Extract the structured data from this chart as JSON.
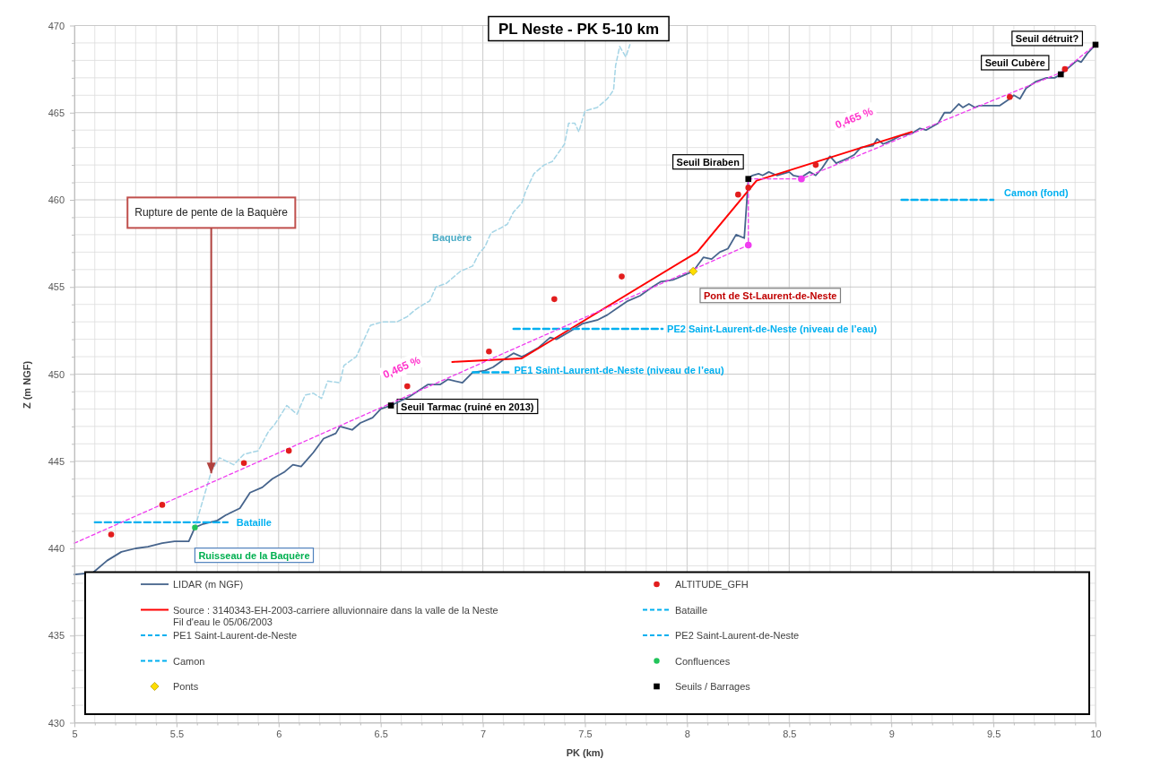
{
  "chart_data": {
    "type": "line",
    "title": "PL Neste - PK 5-10 km",
    "xlabel": "PK (km)",
    "ylabel": "Z (m NGF)",
    "xlim": [
      5,
      10
    ],
    "ylim": [
      430,
      470
    ],
    "xticks": [
      5,
      {
        "value": 5.1,
        "label": null
      },
      {
        "value": 5.2,
        "label": null
      },
      {
        "value": 5.3,
        "label": null
      },
      {
        "value": 5.4,
        "label": null
      },
      5.5,
      {
        "value": 5.6,
        "label": null
      },
      {
        "value": 5.7,
        "label": null
      },
      {
        "value": 5.8,
        "label": null
      },
      {
        "value": 5.9,
        "label": null
      },
      6,
      {
        "value": 6.1,
        "label": null
      },
      {
        "value": 6.2,
        "label": null
      },
      {
        "value": 6.3,
        "label": null
      },
      {
        "value": 6.4,
        "label": null
      },
      6.5,
      {
        "value": 6.6,
        "label": null
      },
      {
        "value": 6.7,
        "label": null
      },
      {
        "value": 6.8,
        "label": null
      },
      {
        "value": 6.9,
        "label": null
      },
      7,
      {
        "value": 7.1,
        "label": null
      },
      {
        "value": 7.2,
        "label": null
      },
      {
        "value": 7.3,
        "label": null
      },
      {
        "value": 7.4,
        "label": null
      },
      7.5,
      {
        "value": 7.6,
        "label": null
      },
      {
        "value": 7.7,
        "label": null
      },
      {
        "value": 7.8,
        "label": null
      },
      {
        "value": 7.9,
        "label": null
      },
      8,
      {
        "value": 8.1,
        "label": null
      },
      {
        "value": 8.2,
        "label": null
      },
      {
        "value": 8.3,
        "label": null
      },
      {
        "value": 8.4,
        "label": null
      },
      8.5,
      {
        "value": 8.6,
        "label": null
      },
      {
        "value": 8.7,
        "label": null
      },
      {
        "value": 8.8,
        "label": null
      },
      {
        "value": 8.9,
        "label": null
      },
      9,
      {
        "value": 9.1,
        "label": null
      },
      {
        "value": 9.2,
        "label": null
      },
      {
        "value": 9.3,
        "label": null
      },
      {
        "value": 9.4,
        "label": null
      },
      9.5,
      {
        "value": 9.6,
        "label": null
      },
      {
        "value": 9.7,
        "label": null
      },
      {
        "value": 9.8,
        "label": null
      },
      {
        "value": 9.9,
        "label": null
      },
      10
    ],
    "yticks": [
      430,
      {
        "value": 431,
        "label": null
      },
      {
        "value": 432,
        "label": null
      },
      {
        "value": 433,
        "label": null
      },
      {
        "value": 434,
        "label": null
      },
      435,
      {
        "value": 436,
        "label": null
      },
      {
        "value": 437,
        "label": null
      },
      {
        "value": 438,
        "label": null
      },
      {
        "value": 439,
        "label": null
      },
      440,
      {
        "value": 441,
        "label": null
      },
      {
        "value": 442,
        "label": null
      },
      {
        "value": 443,
        "label": null
      },
      {
        "value": 444,
        "label": null
      },
      445,
      {
        "value": 446,
        "label": null
      },
      {
        "value": 447,
        "label": null
      },
      {
        "value": 448,
        "label": null
      },
      {
        "value": 449,
        "label": null
      },
      450,
      {
        "value": 451,
        "label": null
      },
      {
        "value": 452,
        "label": null
      },
      {
        "value": 453,
        "label": null
      },
      {
        "value": 454,
        "label": null
      },
      455,
      {
        "value": 456,
        "label": null
      },
      {
        "value": 457,
        "label": null
      },
      {
        "value": 458,
        "label": null
      },
      {
        "value": 459,
        "label": null
      },
      460,
      {
        "value": 461,
        "label": null
      },
      {
        "value": 462,
        "label": null
      },
      {
        "value": 463,
        "label": null
      },
      {
        "value": 464,
        "label": null
      },
      465,
      {
        "value": 466,
        "label": null
      },
      {
        "value": 467,
        "label": null
      },
      {
        "value": 468,
        "label": null
      },
      {
        "value": 469,
        "label": null
      },
      470
    ],
    "grid": true,
    "legend": "bottom",
    "series": [
      {
        "name": "LIDAR (m NGF)",
        "color": "#46648c",
        "x": [
          5.0,
          5.09,
          5.16,
          5.23,
          5.3,
          5.36,
          5.43,
          5.49,
          5.56,
          5.59,
          5.63,
          5.7,
          5.74,
          5.81,
          5.86,
          5.92,
          5.97,
          6.03,
          6.07,
          6.11,
          6.17,
          6.22,
          6.28,
          6.3,
          6.36,
          6.4,
          6.46,
          6.5,
          6.55,
          6.64,
          6.73,
          6.79,
          6.83,
          6.9,
          6.95,
          7.01,
          7.05,
          7.11,
          7.15,
          7.19,
          7.21,
          7.27,
          7.33,
          7.36,
          7.42,
          7.49,
          7.56,
          7.61,
          7.66,
          7.71,
          7.77,
          7.83,
          7.87,
          7.93,
          7.99,
          8.03,
          8.08,
          8.12,
          8.16,
          8.2,
          8.24,
          8.28,
          8.29,
          8.3,
          8.32,
          8.35,
          8.37,
          8.4,
          8.44,
          8.5,
          8.52,
          8.56,
          8.6,
          8.63,
          8.66,
          8.7,
          8.73,
          8.79,
          8.82,
          8.85,
          8.91,
          8.93,
          8.96,
          9.0,
          9.05,
          9.1,
          9.14,
          9.17,
          9.23,
          9.26,
          9.29,
          9.33,
          9.35,
          9.38,
          9.41,
          9.43,
          9.46,
          9.53,
          9.58,
          9.6,
          9.63,
          9.66,
          9.71,
          9.76,
          9.8,
          9.83,
          9.86,
          9.91,
          9.93,
          9.96,
          10.0
        ],
        "values": [
          438.5,
          438.6,
          439.3,
          439.8,
          440.0,
          440.1,
          440.3,
          440.4,
          440.4,
          441.2,
          441.4,
          441.6,
          441.9,
          442.3,
          443.2,
          443.5,
          444.0,
          444.4,
          444.8,
          444.7,
          445.5,
          446.3,
          446.6,
          447.0,
          446.8,
          447.2,
          447.5,
          448.0,
          448.2,
          448.7,
          449.4,
          449.4,
          449.7,
          449.5,
          450.1,
          450.2,
          450.4,
          450.9,
          451.2,
          451.0,
          451.1,
          451.5,
          452.1,
          452.0,
          452.4,
          452.9,
          453.1,
          453.4,
          453.8,
          454.2,
          454.5,
          455.0,
          455.3,
          455.4,
          455.7,
          455.9,
          456.7,
          456.6,
          457.0,
          457.2,
          458.0,
          457.8,
          459.5,
          461.2,
          461.4,
          461.5,
          461.4,
          461.6,
          461.4,
          461.6,
          461.4,
          461.3,
          461.6,
          461.4,
          461.8,
          462.5,
          462.1,
          462.4,
          462.6,
          463.0,
          463.1,
          463.5,
          463.2,
          463.4,
          463.7,
          463.8,
          464.1,
          464.0,
          464.4,
          465.0,
          465.0,
          465.5,
          465.3,
          465.5,
          465.3,
          465.4,
          465.4,
          465.4,
          465.8,
          466.0,
          465.8,
          466.4,
          466.8,
          467.0,
          467.0,
          467.2,
          467.5,
          468.0,
          467.9,
          468.4,
          468.9
        ]
      },
      {
        "name": "ALTITUDE_GFH",
        "type": "scatter",
        "marker": "circle",
        "color": "#e21d1d",
        "x": [
          5.18,
          5.43,
          5.83,
          6.05,
          6.63,
          7.03,
          7.35,
          7.68,
          8.25,
          8.3,
          8.63,
          9.58,
          9.85
        ],
        "values": [
          440.8,
          442.5,
          444.9,
          445.6,
          449.3,
          451.3,
          454.3,
          455.6,
          460.3,
          460.7,
          462.0,
          465.9,
          467.5
        ]
      },
      {
        "name": "Source : 3140343-EH-2003-carriere alluvionnaire dans la valle de la Neste\nFil d'eau le 05/06/2003",
        "color": "#ff0000",
        "x": [
          6.85,
          7.19,
          8.05,
          8.34,
          9.1
        ],
        "values": [
          450.7,
          450.9,
          457.0,
          461.1,
          463.9
        ]
      },
      {
        "name": "Bataille",
        "line_style": "dashed",
        "color": "#00b0f0",
        "x": [
          5.1,
          5.75
        ],
        "values": [
          441.5,
          441.5
        ]
      },
      {
        "name": "PE1 Saint-Laurent-de-Neste",
        "line_style": "dashed",
        "color": "#00b0f0",
        "x": [
          6.95,
          7.14
        ],
        "values": [
          450.1,
          450.1
        ]
      },
      {
        "name": "PE2 Saint-Laurent-de-Neste",
        "line_style": "dashed",
        "color": "#00b0f0",
        "x": [
          7.15,
          7.88
        ],
        "values": [
          452.6,
          452.6
        ]
      },
      {
        "name": "Camon",
        "line_style": "dashed",
        "color": "#00b0f0",
        "x": [
          9.05,
          9.5
        ],
        "values": [
          460,
          460
        ]
      },
      {
        "name": "Confluences",
        "type": "scatter",
        "marker": "circle",
        "color": "#21c45a",
        "x": [
          5.59
        ],
        "values": [
          441.2
        ]
      },
      {
        "name": "Ponts",
        "type": "scatter",
        "marker": "diamond",
        "color": "#ffdd00",
        "x": [
          8.03
        ],
        "values": [
          455.9
        ]
      },
      {
        "name": "Seuils / Barrages",
        "type": "scatter",
        "marker": "square",
        "color": "#000000",
        "x": [
          6.55,
          8.3,
          9.83,
          10.0
        ],
        "values": [
          448.2,
          461.2,
          467.2,
          468.9
        ]
      },
      {
        "line_style": "dashed",
        "color": "#a5d5e6",
        "x": [
          5.59,
          5.67,
          5.71,
          5.78,
          5.83,
          5.9,
          5.95,
          5.98,
          6.04,
          6.09,
          6.13,
          6.17,
          6.21,
          6.24,
          6.3,
          6.32,
          6.38,
          6.45,
          6.51,
          6.58,
          6.63,
          6.67,
          6.71,
          6.74,
          6.77,
          6.82,
          6.85,
          6.89,
          6.95,
          6.98,
          7.01,
          7.04,
          7.09,
          7.12,
          7.15,
          7.19,
          7.21,
          7.25,
          7.3,
          7.34,
          7.37,
          7.4,
          7.42,
          7.45,
          7.47,
          7.5,
          7.56,
          7.61,
          7.64,
          7.65,
          7.67,
          7.7,
          7.72
        ],
        "values": [
          441.2,
          444.4,
          445.2,
          444.8,
          445.4,
          445.6,
          446.7,
          447.1,
          448.2,
          447.7,
          448.8,
          448.9,
          448.6,
          449.6,
          449.5,
          450.5,
          451.0,
          452.8,
          453.0,
          453.0,
          453.3,
          453.7,
          454.0,
          454.2,
          455.0,
          455.2,
          455.5,
          455.9,
          456.2,
          456.9,
          457.3,
          458.1,
          458.4,
          458.6,
          459.3,
          459.8,
          460.5,
          461.5,
          462.0,
          462.2,
          462.7,
          463.2,
          464.4,
          464.4,
          463.9,
          465.1,
          465.3,
          465.8,
          466.3,
          467.7,
          468.8,
          468.2,
          468.9
        ]
      },
      {
        "line_style": "dashed",
        "color": "#f03cf0",
        "x": [
          5,
          8.3,
          8.3,
          8.56,
          9.83,
          10
        ],
        "values": [
          440.3,
          457.4,
          461.2,
          461.2,
          467.3,
          468.9
        ]
      },
      {
        "type": "scatter",
        "marker": "circle",
        "color": "#f03cf0",
        "x": [
          8.3,
          8.56
        ],
        "values": [
          457.4,
          461.2
        ]
      }
    ],
    "annotations": [
      {
        "text": "Rupture de pente de la Baquère",
        "x": 5.67,
        "y": 444.3
      },
      "Baquère",
      {
        "text": "Bataille",
        "x": 5.75,
        "y": 441.5
      },
      {
        "text": "Ruisseau de la Baquère",
        "x": 5.59,
        "y": 441.2
      },
      {
        "text": "Seuil Tarmac (ruiné en 2013)",
        "x": 6.55,
        "y": 448.2
      },
      "0,465 %",
      {
        "text": "PE1 Saint-Laurent-de-Neste (niveau de l’eau)",
        "x": 7.14,
        "y": 450.1
      },
      {
        "text": "PE2 Saint-Laurent-de-Neste (niveau de l’eau)",
        "x": 7.88,
        "y": 452.6
      },
      {
        "text": "Pont de St-Laurent-de-Neste",
        "x": 8.03,
        "y": 455.9
      },
      {
        "text": "Seuil Biraben",
        "x": 8.3,
        "y": 461.2
      },
      "0,465 %",
      {
        "text": "Camon (fond)",
        "x": 9.5,
        "y": 460
      },
      {
        "text": "Seuil Cubère",
        "x": 9.83,
        "y": 467.2
      },
      {
        "text": "Seuil détruit?",
        "x": 10,
        "y": 468.9
      }
    ]
  }
}
